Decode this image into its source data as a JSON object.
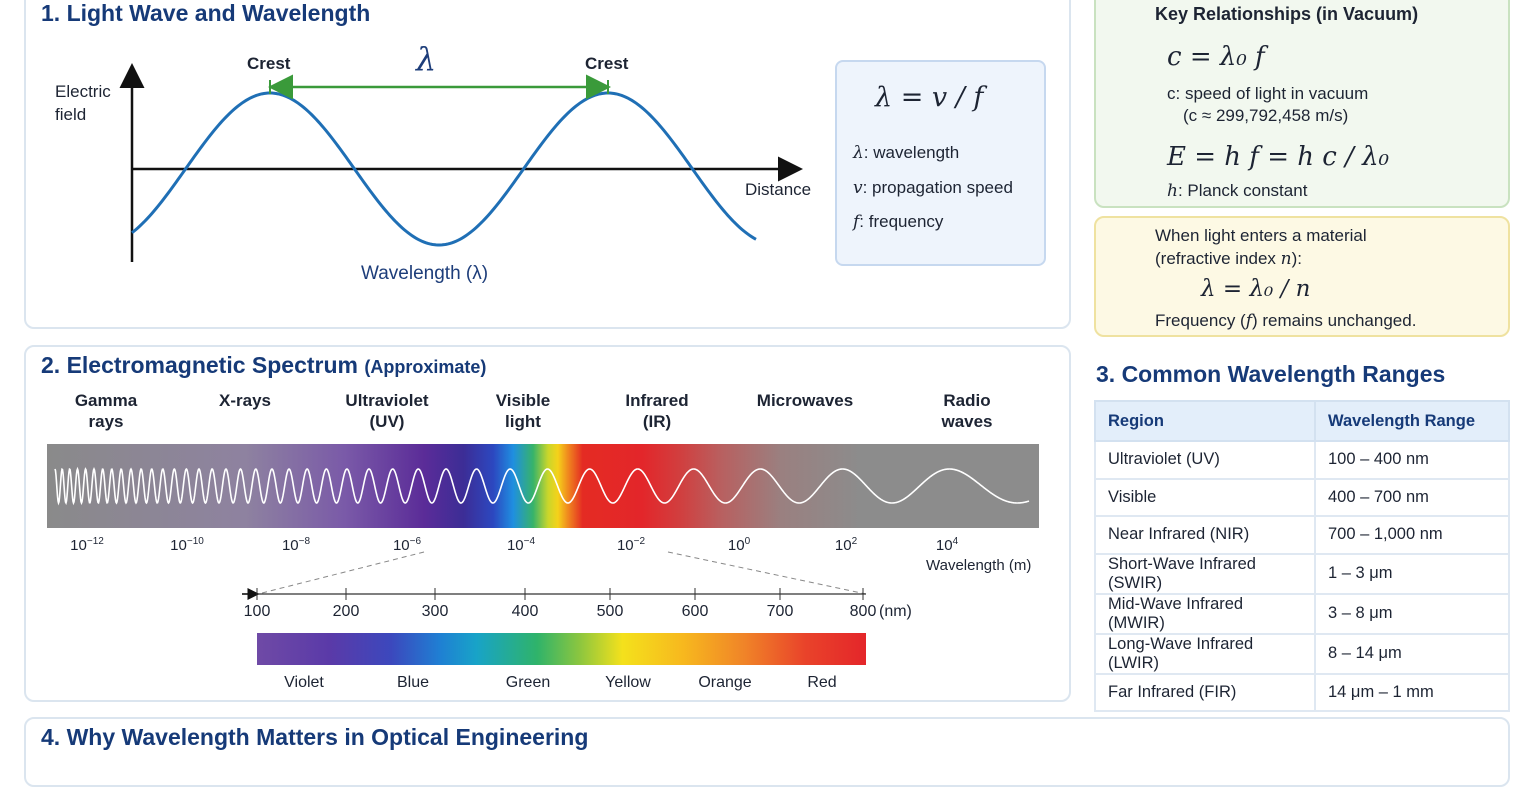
{
  "section1": {
    "title": "1. Light Wave and Wavelength",
    "y_axis_label_line1": "Electric",
    "y_axis_label_line2": "field",
    "x_axis_label": "Distance",
    "crest_left": "Crest",
    "crest_right": "Crest",
    "lambda_symbol": "λ",
    "wavelength_label": "Wavelength (λ)",
    "formula": "λ = v / f",
    "defs": [
      {
        "sym": "λ",
        "text": ": wavelength"
      },
      {
        "sym": "v",
        "text": ": propagation speed"
      },
      {
        "sym": "f",
        "text": ": frequency"
      }
    ]
  },
  "key_relationships": {
    "title": "Key Relationships (in Vacuum)",
    "formula1": "c = λ₀ f",
    "desc1_line1": "c: speed of light in vacuum",
    "desc1_line2": "(c ≈ 299,792,458 m/s)",
    "formula2": "E = h f = h c / λ₀",
    "desc2_sym": "h",
    "desc2_text": ": Planck constant"
  },
  "material_note": {
    "line1": "When light enters a material",
    "line2_a": "(refractive index ",
    "line2_sym": "n",
    "line2_b": "):",
    "formula": "λ = λ₀ / n",
    "line3_a": "Frequency (",
    "line3_sym": "f",
    "line3_b": ") remains unchanged."
  },
  "section2": {
    "title": "2. Electromagnetic Spectrum",
    "subtitle": "(Approximate)",
    "regions": [
      {
        "line1": "Gamma",
        "line2": "rays"
      },
      {
        "line1": "X-rays",
        "line2": ""
      },
      {
        "line1": "Ultraviolet",
        "line2": "(UV)"
      },
      {
        "line1": "Visible",
        "line2": "light"
      },
      {
        "line1": "Infrared",
        "line2": "(IR)"
      },
      {
        "line1": "Microwaves",
        "line2": ""
      },
      {
        "line1": "Radio",
        "line2": "waves"
      }
    ],
    "ticks": [
      {
        "base": "10",
        "exp": "−12"
      },
      {
        "base": "10",
        "exp": "−10"
      },
      {
        "base": "10",
        "exp": "−8"
      },
      {
        "base": "10",
        "exp": "−6"
      },
      {
        "base": "10",
        "exp": "−4"
      },
      {
        "base": "10",
        "exp": "−2"
      },
      {
        "base": "10",
        "exp": "0"
      },
      {
        "base": "10",
        "exp": "2"
      },
      {
        "base": "10",
        "exp": "4"
      }
    ],
    "axis_label": "Wavelength (m)",
    "nm_ticks": [
      "100",
      "200",
      "300",
      "400",
      "500",
      "600",
      "700",
      "800"
    ],
    "nm_unit": "(nm)",
    "colors": [
      "Violet",
      "Blue",
      "Green",
      "Yellow",
      "Orange",
      "Red"
    ]
  },
  "section3": {
    "title": "3. Common Wavelength Ranges",
    "headers": [
      "Region",
      "Wavelength Range"
    ],
    "rows": [
      [
        "Ultraviolet (UV)",
        "100 – 400 nm"
      ],
      [
        "Visible",
        "400 – 700 nm"
      ],
      [
        "Near Infrared (NIR)",
        "700 – 1,000 nm"
      ],
      [
        "Short-Wave Infrared (SWIR)",
        "1 – 3 μm"
      ],
      [
        "Mid-Wave Infrared (MWIR)",
        "3 – 8 μm"
      ],
      [
        "Long-Wave Infrared (LWIR)",
        "8 – 14 μm"
      ],
      [
        "Far Infrared (FIR)",
        "14 μm – 1 mm"
      ]
    ]
  },
  "section4": {
    "title": "4. Why Wavelength Matters in Optical Engineering"
  }
}
